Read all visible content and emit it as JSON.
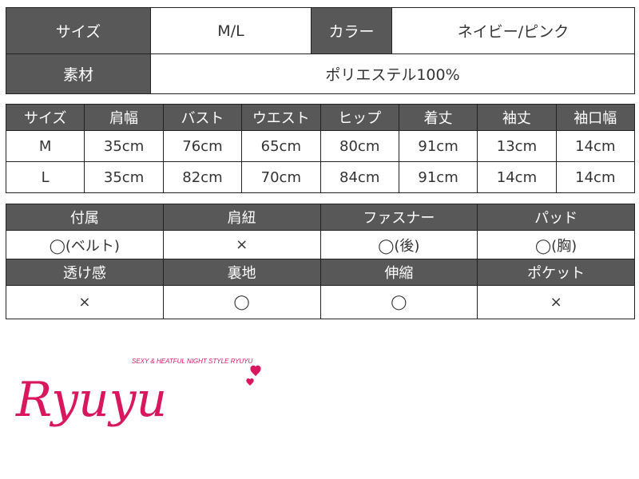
{
  "spec": {
    "size_label": "サイズ",
    "size_value": "M/L",
    "color_label": "カラー",
    "color_value": "ネイビー/ピンク",
    "material_label": "素材",
    "material_value": "ポリエステル100%"
  },
  "measurements": {
    "headers": [
      "サイズ",
      "肩幅",
      "バスト",
      "ウエスト",
      "ヒップ",
      "着丈",
      "袖丈",
      "袖口幅"
    ],
    "rows": [
      [
        "M",
        "35cm",
        "76cm",
        "65cm",
        "80cm",
        "91cm",
        "13cm",
        "14cm"
      ],
      [
        "L",
        "35cm",
        "82cm",
        "70cm",
        "84cm",
        "91cm",
        "14cm",
        "14cm"
      ]
    ]
  },
  "features": {
    "headers1": [
      "付属",
      "肩紐",
      "ファスナー",
      "パッド"
    ],
    "values1": [
      "◯(ベルト)",
      "×",
      "◯(後)",
      "◯(胸)"
    ],
    "headers2": [
      "透け感",
      "裏地",
      "伸縮",
      "ポケット"
    ],
    "values2": [
      "×",
      "◯",
      "◯",
      "×"
    ]
  },
  "logo": {
    "name": "Ryuyu",
    "tagline": "SEXY & HEATFUL NIGHT STYLE RYUYU",
    "color": "#d8175f"
  }
}
